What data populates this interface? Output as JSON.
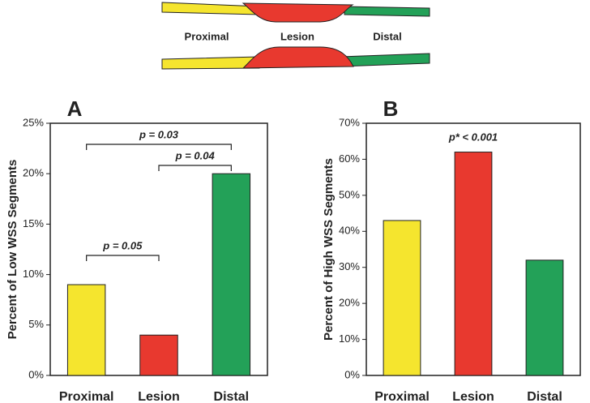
{
  "diagram": {
    "labels": [
      "Proximal",
      "Lesion",
      "Distal"
    ]
  },
  "chart_data": [
    {
      "type": "bar",
      "panel": "A",
      "ylabel": "Percent of Low WSS Segments",
      "categories": [
        "Proximal",
        "Lesion",
        "Distal"
      ],
      "values": [
        9,
        4,
        20
      ],
      "colors": [
        "#f5e52e",
        "#e8392f",
        "#23a158"
      ],
      "ylim": [
        0,
        25
      ],
      "yticks": [
        {
          "value": 0,
          "label": "0%"
        },
        {
          "value": 5,
          "label": "5%"
        },
        {
          "value": 10,
          "label": "10%"
        },
        {
          "value": 15,
          "label": "15%"
        },
        {
          "value": 20,
          "label": "20%"
        },
        {
          "value": 25,
          "label": "25%"
        }
      ],
      "annotations": [
        "p = 0.03",
        "p = 0.04",
        "p = 0.05"
      ]
    },
    {
      "type": "bar",
      "panel": "B",
      "ylabel": "Percent of High WSS Segments",
      "categories": [
        "Proximal",
        "Lesion",
        "Distal"
      ],
      "values": [
        43,
        62,
        32
      ],
      "colors": [
        "#f5e52e",
        "#e8392f",
        "#23a158"
      ],
      "ylim": [
        0,
        70
      ],
      "yticks": [
        {
          "value": 0,
          "label": "0%"
        },
        {
          "value": 10,
          "label": "10%"
        },
        {
          "value": 20,
          "label": "20%"
        },
        {
          "value": 30,
          "label": "30%"
        },
        {
          "value": 40,
          "label": "40%"
        },
        {
          "value": 50,
          "label": "50%"
        },
        {
          "value": 60,
          "label": "60%"
        },
        {
          "value": 70,
          "label": "70%"
        }
      ],
      "annotations": [
        "p* < 0.001"
      ]
    }
  ]
}
